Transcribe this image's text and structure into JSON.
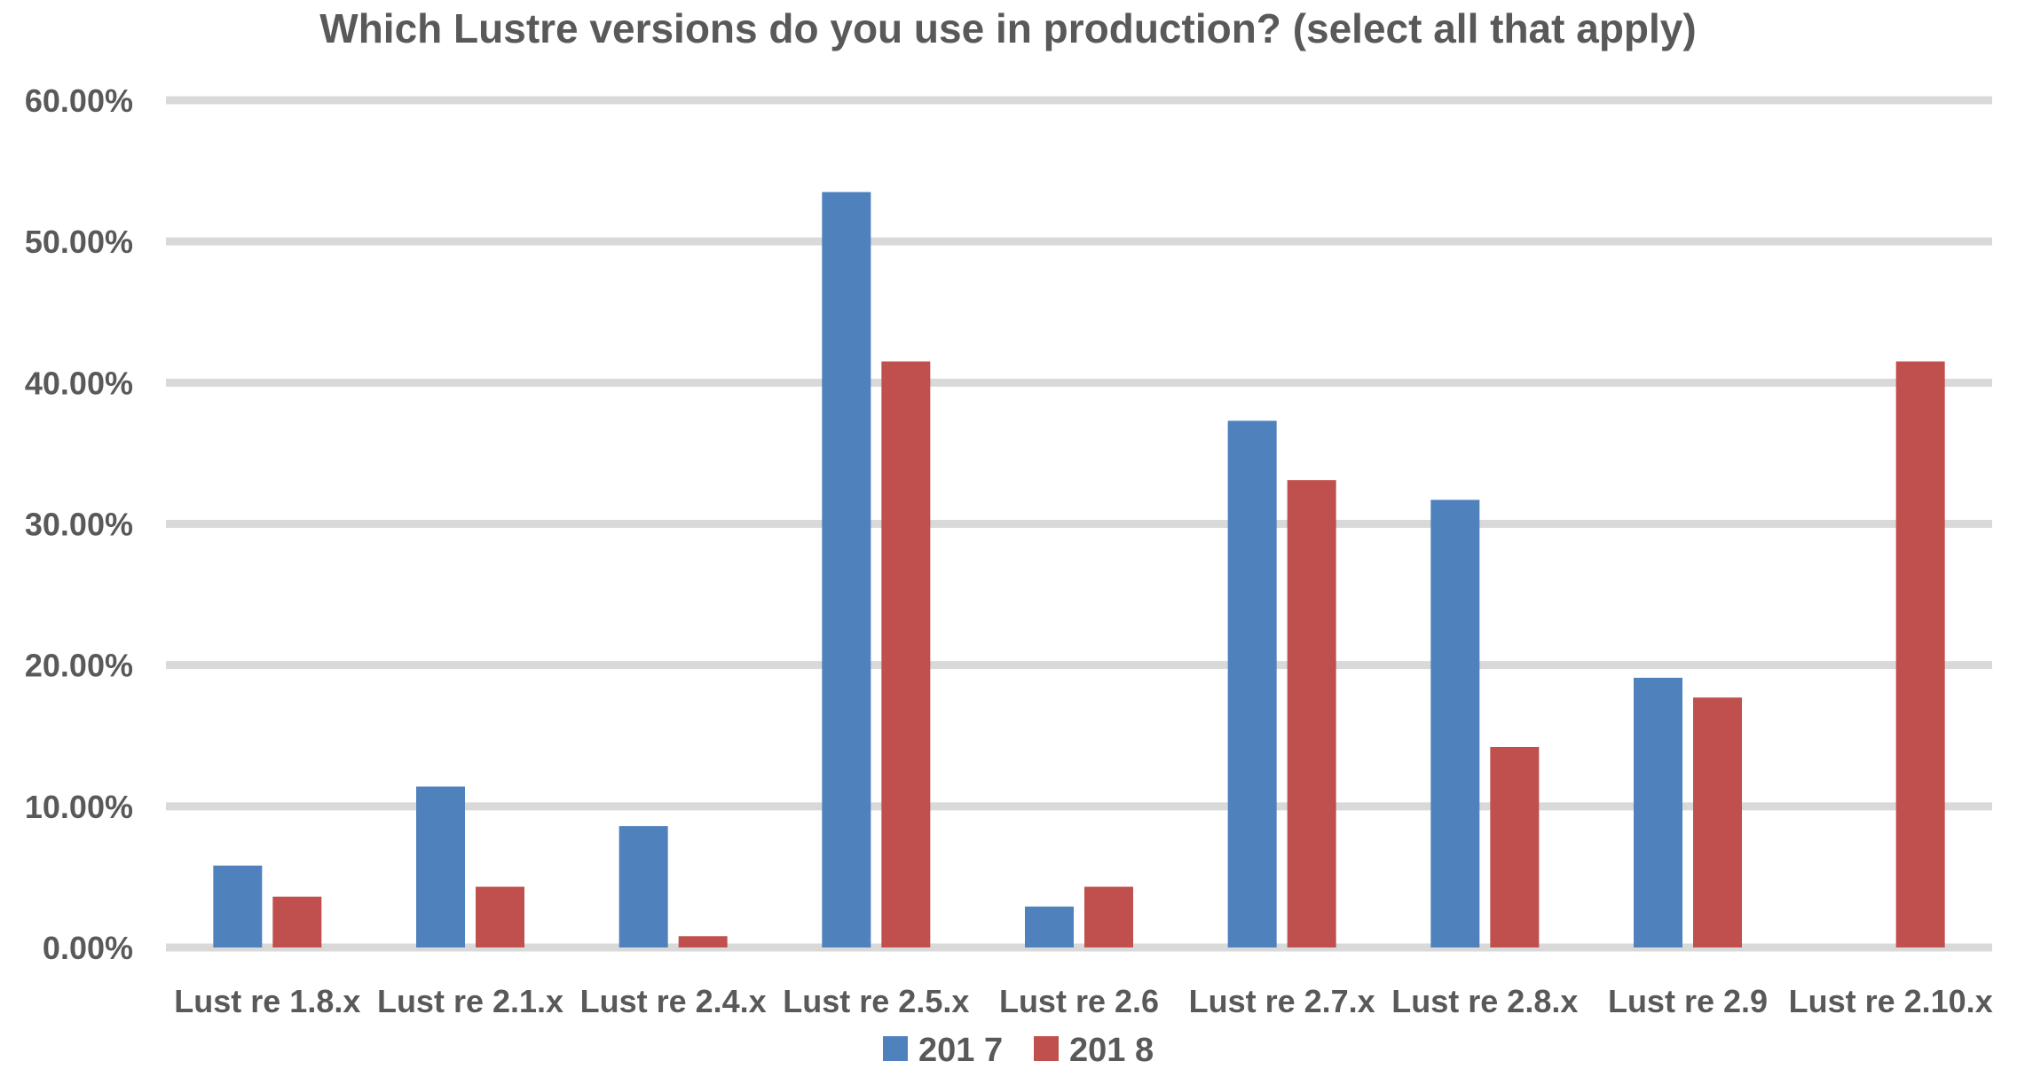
{
  "chart_data": {
    "type": "bar",
    "title": "Which Lustre versions do you use in production? (select all that apply)",
    "categories": [
      "Lust re 1.8.x",
      "Lust re 2.1.x",
      "Lust re 2.4.x",
      "Lust re 2.5.x",
      "Lust re 2.6",
      "Lust re 2.7.x",
      "Lust re 2.8.x",
      "Lust re 2.9",
      "Lust re 2.10.x"
    ],
    "series": [
      {
        "name": "201 7",
        "color": "#4f81bd",
        "values": [
          5.8,
          11.4,
          8.6,
          53.5,
          2.9,
          37.3,
          31.7,
          19.1,
          0
        ]
      },
      {
        "name": "201 8",
        "color": "#c0504d",
        "values": [
          3.6,
          4.3,
          0.8,
          41.5,
          4.3,
          33.1,
          14.2,
          17.7,
          41.5
        ]
      }
    ],
    "ylim": [
      0,
      60
    ],
    "yticks": [
      0,
      10,
      20,
      30,
      40,
      50,
      60
    ],
    "ytick_labels": [
      "0.00%",
      "10.00%",
      "20.00%",
      "30.00%",
      "40.00%",
      "50.00%",
      "60.00%"
    ],
    "xlabel": "",
    "ylabel": "",
    "grid": true,
    "legend_position": "bottom"
  }
}
